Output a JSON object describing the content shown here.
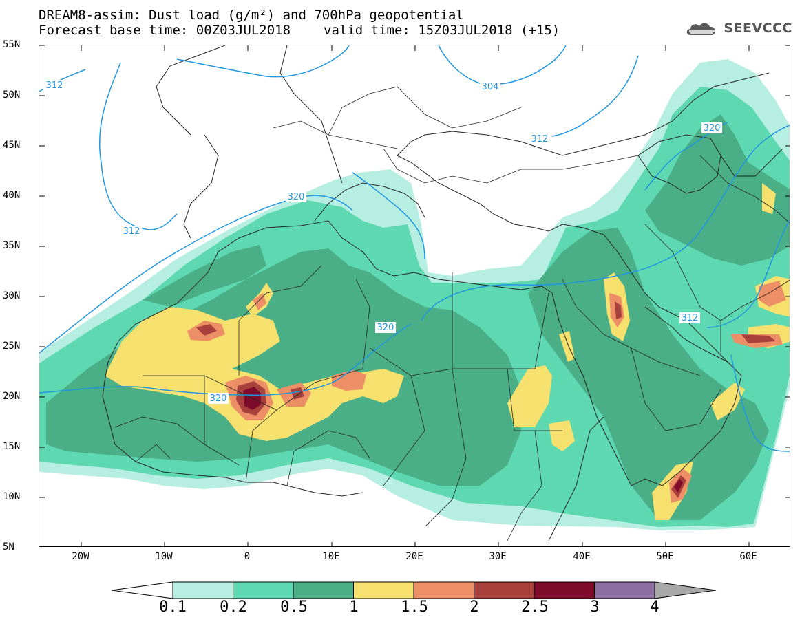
{
  "title": {
    "line1": "DREAM8-assim: Dust load (g/m²) and 700hPa geopotential",
    "line2_left": "Forecast base time: 00Z03JUL2018",
    "line2_right": "valid time: 15Z03JUL2018 (+15)"
  },
  "logo": {
    "text": "SEEVCCC",
    "icon": "cloud-logo-icon",
    "color": "#5a5a5a"
  },
  "map": {
    "lon_range": [
      -25,
      65
    ],
    "lat_range": [
      5,
      55
    ],
    "lat_labels": [
      "55N",
      "50N",
      "45N",
      "40N",
      "35N",
      "30N",
      "25N",
      "20N",
      "15N",
      "10N",
      "5N"
    ],
    "lon_labels": [
      "20W",
      "10W",
      "0",
      "10E",
      "20E",
      "30E",
      "40E",
      "50E",
      "60E"
    ],
    "contour_labels": [
      "312",
      "312",
      "304",
      "312",
      "320",
      "320",
      "320",
      "320",
      "312"
    ]
  },
  "colorbar": {
    "ticks": [
      "0.1",
      "0.2",
      "0.5",
      "1",
      "1.5",
      "2",
      "2.5",
      "3",
      "4"
    ],
    "colors": [
      "#b7eee2",
      "#5ed8b0",
      "#4aae86",
      "#f6e16e",
      "#ec8e66",
      "#a8413c",
      "#7e0c2a",
      "#8c6ea0",
      "#a8a8a8"
    ]
  },
  "colors": {
    "lev1": "#b7eee2",
    "lev2": "#5ed8b0",
    "lev3": "#4aae86",
    "lev4": "#f6e16e",
    "lev5": "#ec8e66",
    "lev6": "#a8413c",
    "lev7": "#7e0c2a",
    "contour": "#2196e0",
    "border": "#222222"
  }
}
